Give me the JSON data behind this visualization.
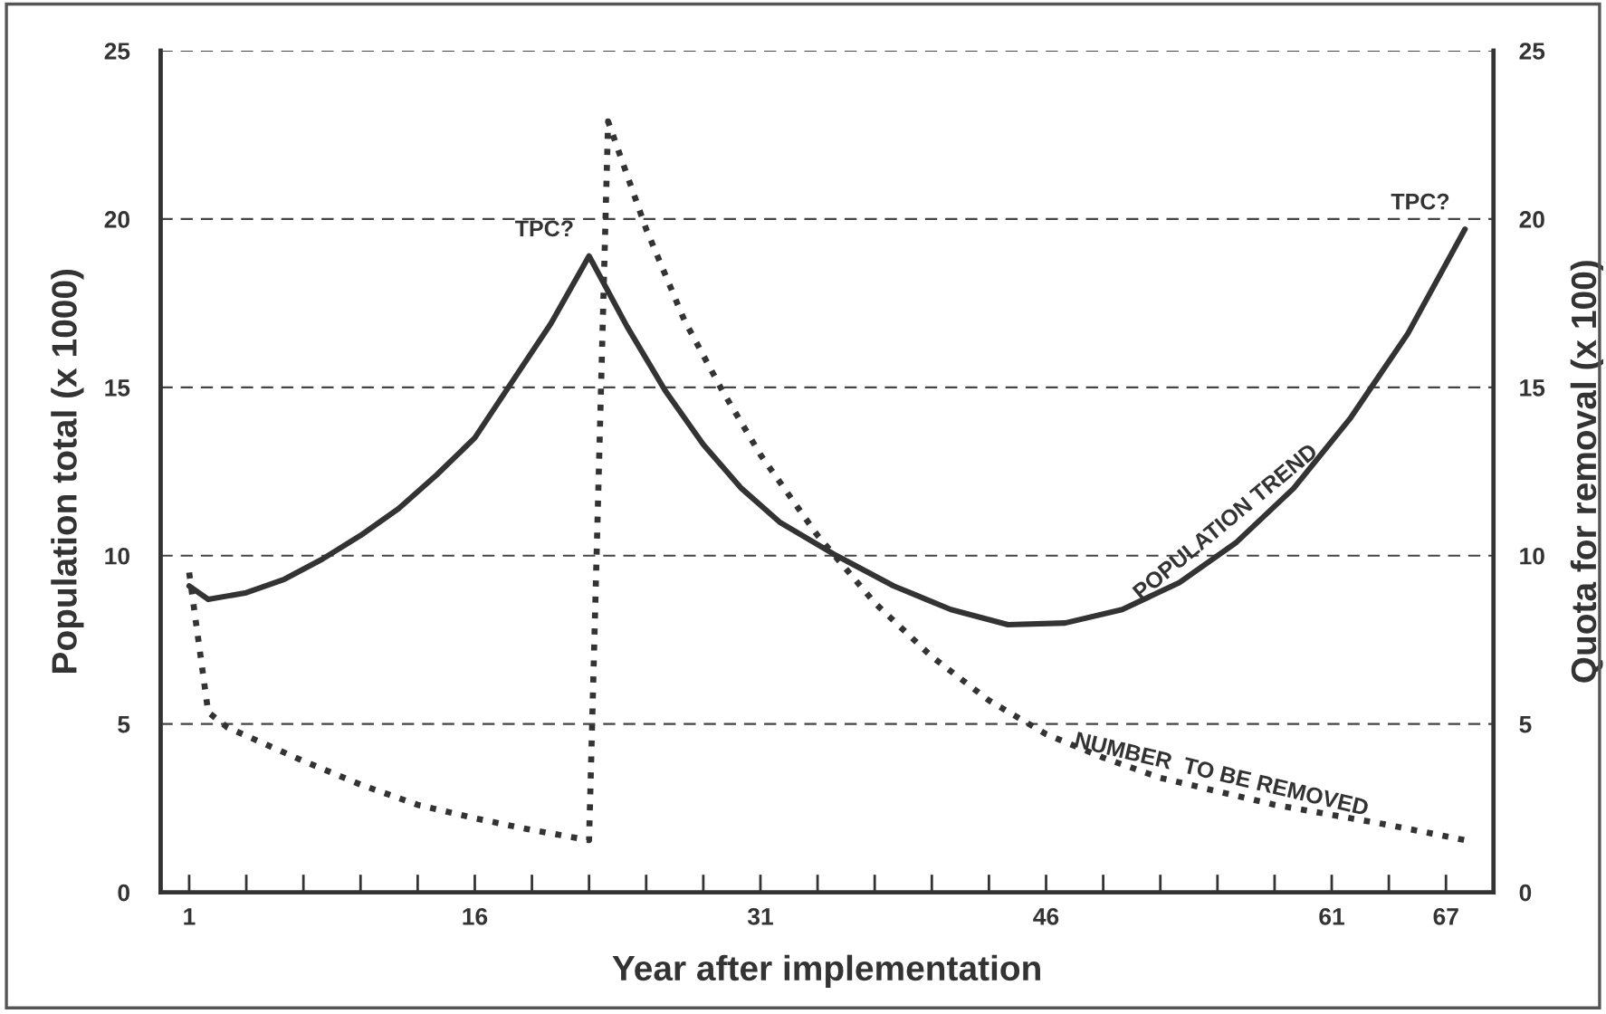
{
  "chart_data": {
    "type": "line",
    "xlabel": "Year after implementation",
    "ylabel": "Population total (x 1000)",
    "y2label": "Quota for removal (x 100)",
    "series": [
      {
        "name": "POPULATION TREND",
        "color": "#333333",
        "line_style": "solid",
        "x": [
          1,
          2,
          4,
          6,
          8,
          10,
          12,
          14,
          16,
          18,
          20,
          22,
          24,
          26,
          28,
          30,
          32,
          35,
          38,
          41,
          44,
          47,
          50,
          53,
          56,
          59,
          62,
          65,
          68
        ],
        "values": [
          9.1,
          8.7,
          8.9,
          9.3,
          9.9,
          10.6,
          11.4,
          12.4,
          13.5,
          15.2,
          16.9,
          18.9,
          16.8,
          14.9,
          13.3,
          12.0,
          11.0,
          10.0,
          9.1,
          8.4,
          7.95,
          8.0,
          8.4,
          9.2,
          10.4,
          12.0,
          14.1,
          16.6,
          19.7
        ]
      },
      {
        "name": "NUMBER  TO BE REMOVED",
        "color": "#333333",
        "line_style": "dotted",
        "x": [
          1,
          2,
          3,
          5,
          7,
          10,
          13,
          16,
          19,
          22,
          23,
          25,
          27,
          29,
          31,
          34,
          37,
          40,
          43,
          46,
          49,
          52,
          55,
          58,
          61,
          64,
          68
        ],
        "values": [
          9.5,
          5.35,
          4.9,
          4.4,
          3.9,
          3.2,
          2.6,
          2.2,
          1.85,
          1.55,
          22.9,
          19.7,
          17.0,
          14.9,
          13.0,
          10.6,
          8.6,
          7.0,
          5.7,
          4.7,
          4.0,
          3.4,
          3.0,
          2.6,
          2.3,
          2.0,
          1.55
        ]
      }
    ],
    "annotations": [
      {
        "text": "TPC?",
        "x": 22,
        "y": 18.9
      },
      {
        "text": "TPC?",
        "x": 68,
        "y": 19.7
      }
    ],
    "xlim": [
      -0.5,
      69.5
    ],
    "xticks": [
      1,
      {
        "value": 4,
        "label": null
      },
      {
        "value": 7,
        "label": null
      },
      {
        "value": 10,
        "label": null
      },
      {
        "value": 13,
        "label": null
      },
      16,
      {
        "value": 19,
        "label": null
      },
      {
        "value": 22,
        "label": null
      },
      {
        "value": 25,
        "label": null
      },
      {
        "value": 28,
        "label": null
      },
      31,
      {
        "value": 34,
        "label": null
      },
      {
        "value": 37,
        "label": null
      },
      {
        "value": 40,
        "label": null
      },
      {
        "value": 43,
        "label": null
      },
      46,
      {
        "value": 49,
        "label": null
      },
      {
        "value": 52,
        "label": null
      },
      {
        "value": 55,
        "label": null
      },
      {
        "value": 58,
        "label": null
      },
      61,
      {
        "value": 64,
        "label": null
      },
      67
    ],
    "ylim": [
      0,
      25
    ],
    "yticks": [
      0,
      5,
      10,
      15,
      20,
      25
    ],
    "y2lim": [
      0,
      25
    ],
    "y2ticks": [
      0,
      5,
      10,
      15,
      20,
      25
    ],
    "grid": "y",
    "legend": false
  }
}
